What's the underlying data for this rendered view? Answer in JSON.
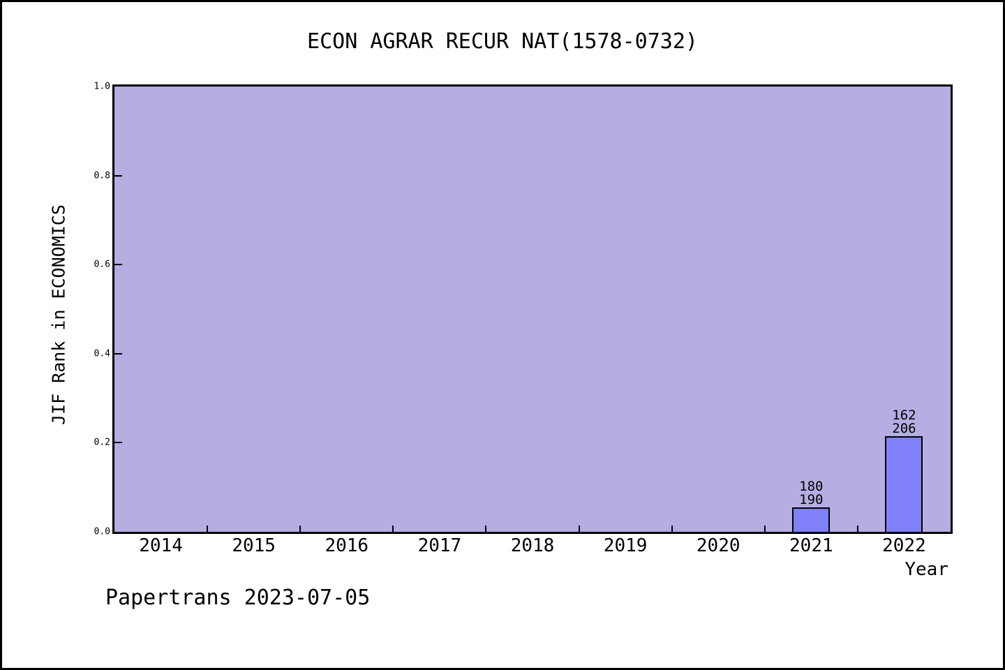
{
  "chart_data": {
    "type": "bar",
    "title": "ECON AGRAR RECUR NAT(1578-0732)",
    "xlabel": "Year",
    "ylabel": "JIF Rank in ECONOMICS",
    "categories": [
      "2014",
      "2015",
      "2016",
      "2017",
      "2018",
      "2019",
      "2020",
      "2021",
      "2022"
    ],
    "series": [
      {
        "name": "JIF Rank",
        "values": [
          null,
          null,
          null,
          null,
          null,
          null,
          null,
          0.055,
          0.215
        ]
      }
    ],
    "bar_annotations": [
      {
        "category": "2021",
        "line1": "180",
        "line2": "190"
      },
      {
        "category": "2022",
        "line1": "162",
        "line2": "206"
      }
    ],
    "ylim": [
      0,
      1.0
    ],
    "yticks": [
      "0.0",
      "0.2",
      "0.4",
      "0.6",
      "0.8",
      "1.0"
    ],
    "grid": false,
    "legend_position": "none"
  },
  "footer": {
    "text": "Papertrans 2023-07-05"
  },
  "colors": {
    "page_background": "#ffffff",
    "page_border": "#000000",
    "plot_background": "#b5aee3",
    "bar_fill": "#8080f8",
    "bar_border": "#000000",
    "text": "#000000"
  }
}
